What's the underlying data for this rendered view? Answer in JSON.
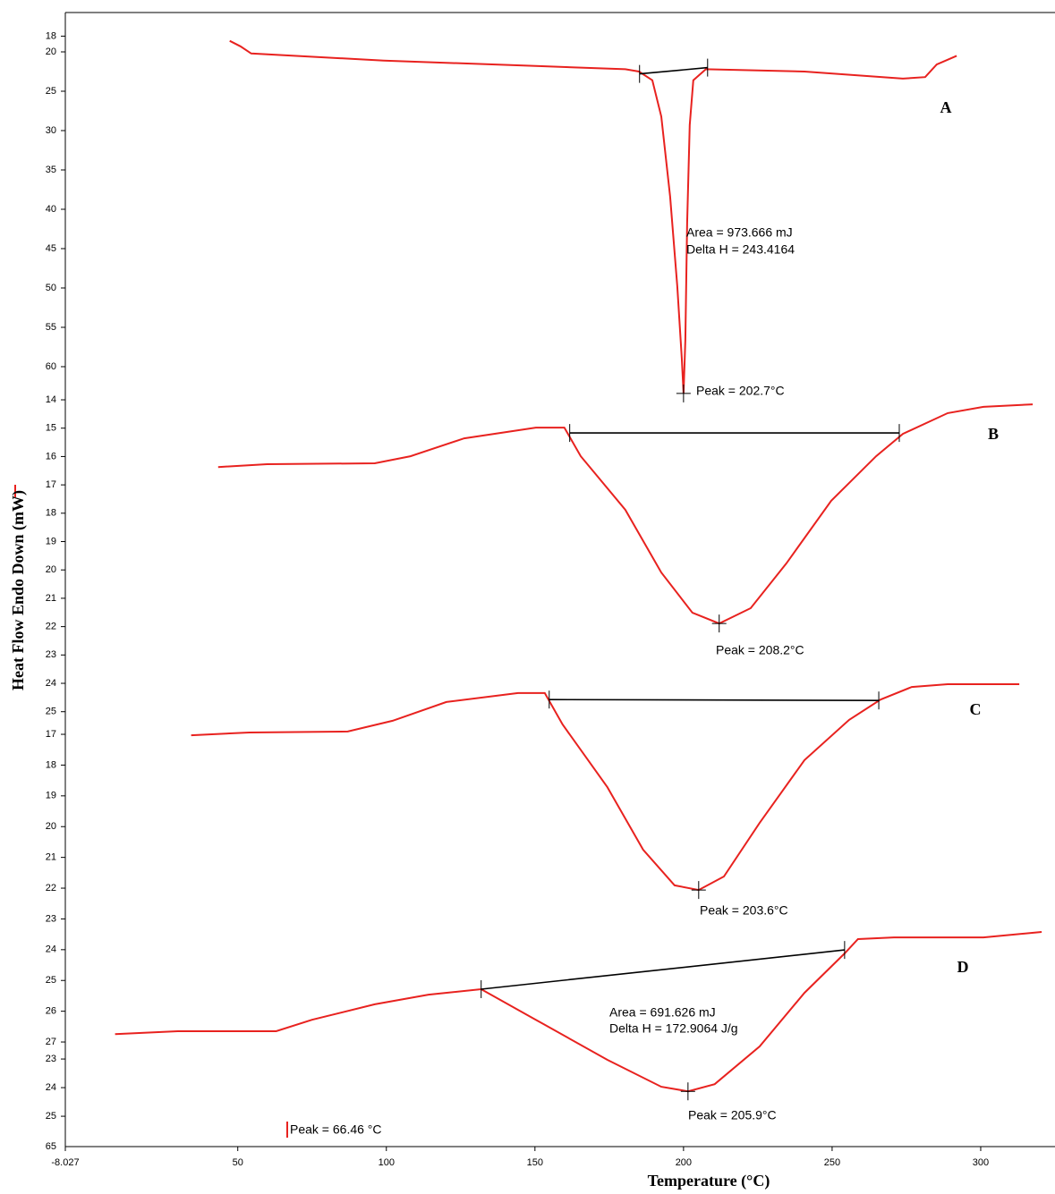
{
  "chart_data": [
    {
      "type": "line",
      "label": "A",
      "ylim": [
        15,
        159.1
      ],
      "y_inverted": true,
      "yticks": [
        18,
        20,
        25,
        30,
        35,
        40,
        45,
        50,
        55,
        60
      ],
      "series": [
        {
          "color": "#e8221f",
          "x": [
            47.3,
            50.9,
            54.5,
            99.1,
            150.3,
            180.4,
            185,
            189.5,
            192.5,
            195.5,
            197.9,
            199.4,
            200,
            200.6,
            201.2,
            202.1,
            203.3,
            207.5,
            240.7,
            273.8,
            281.3,
            285.2,
            291.9
          ],
          "values": [
            18.6,
            19.3,
            20.2,
            21.1,
            21.8,
            22.2,
            22.5,
            23.6,
            28.2,
            38.4,
            49.8,
            58.9,
            63.4,
            56.6,
            41.8,
            29.3,
            23.6,
            22.2,
            22.5,
            23.4,
            23.2,
            21.6,
            20.5
          ]
        },
        {
          "color": "#000000",
          "x": [
            185.2,
            208.1
          ],
          "values": [
            22.8,
            22.0
          ]
        }
      ],
      "peak": {
        "x": 200,
        "y": 63.4
      },
      "annotations": [
        "Area = 973.666 mJ",
        "Delta H = 243.4164",
        "Peak = 202.7°C"
      ]
    },
    {
      "type": "line",
      "label": "B",
      "ylim": [
        0.34,
        40.34
      ],
      "y_inverted": true,
      "yticks": [
        14,
        15,
        16,
        17,
        18,
        19,
        20,
        21,
        22,
        23,
        24,
        25
      ],
      "series": [
        {
          "color": "#e8221f",
          "x": [
            43.4,
            59.9,
            96.1,
            108.1,
            126.2,
            150.3,
            159.9,
            165.4,
            180.4,
            192.5,
            203,
            212,
            222.6,
            234.6,
            249.7,
            264.8,
            273.8,
            288.9,
            300.9,
            317.5
          ],
          "values": [
            16.37,
            16.27,
            16.24,
            15.99,
            15.36,
            14.98,
            14.98,
            15.99,
            17.88,
            20.09,
            21.51,
            21.89,
            21.35,
            19.77,
            17.56,
            15.99,
            15.2,
            14.47,
            14.25,
            14.16
          ]
        },
        {
          "color": "#000000",
          "x": [
            161.7,
            272.6
          ],
          "values": [
            15.17,
            15.17
          ]
        }
      ],
      "peak": {
        "x": 212,
        "y": 21.89
      },
      "annotations": [
        "Peak = 208.2°C"
      ]
    },
    {
      "type": "line",
      "label": "C",
      "ylim": [
        -6.46,
        30.4
      ],
      "y_inverted": true,
      "yticks": [
        17,
        18,
        19,
        20,
        21,
        22,
        23,
        24,
        25,
        26,
        27
      ],
      "series": [
        {
          "color": "#e8221f",
          "x": [
            34.3,
            53.9,
            87,
            102.1,
            120.2,
            144.3,
            153.3,
            159.3,
            174.4,
            186.4,
            197,
            205.1,
            213.6,
            225.6,
            240.7,
            255.7,
            266.3,
            276.8,
            288.9,
            313
          ],
          "values": [
            17.03,
            16.94,
            16.91,
            16.56,
            15.95,
            15.66,
            15.66,
            16.68,
            18.72,
            20.75,
            21.91,
            22.06,
            21.62,
            19.88,
            17.84,
            16.53,
            15.87,
            15.46,
            15.37,
            15.37
          ]
        },
        {
          "color": "#000000",
          "x": [
            154.8,
            265.7
          ],
          "values": [
            15.87,
            15.9
          ]
        }
      ],
      "peak": {
        "x": 205.1,
        "y": 22.06
      },
      "annotations": [
        "Peak = 203.6°C"
      ]
    },
    {
      "type": "line",
      "label": "D",
      "ylim": [
        -13.56,
        26.06
      ],
      "y_inverted": true,
      "yticks": [
        23,
        24,
        25
      ],
      "y_end_label": "65",
      "xlim": [
        -8.027,
        325
      ],
      "xticks": [
        -8.027,
        50,
        100,
        150,
        200,
        250,
        300
      ],
      "xlabel": "Temperature (°C)",
      "ylabel": "Heat Flow Endo Down (mW)",
      "series": [
        {
          "color": "#e8221f",
          "x": [
            8.7,
            29.8,
            62.9,
            75,
            96.1,
            114.2,
            131.9,
            150.3,
            174.4,
            192.5,
            201.5,
            210.5,
            225.6,
            240.7,
            254.2,
            258.7,
            270.8,
            300.9,
            320.5
          ],
          "values": [
            22.13,
            22.03,
            22.03,
            21.63,
            21.09,
            20.75,
            20.56,
            21.63,
            23.03,
            23.97,
            24.13,
            23.88,
            22.56,
            20.69,
            19.31,
            18.81,
            18.75,
            18.75,
            18.56
          ]
        },
        {
          "color": "#000000",
          "x": [
            131.9,
            254.2
          ],
          "values": [
            20.56,
            19.19
          ]
        }
      ],
      "peak": {
        "x": 201.5,
        "y": 24.13
      },
      "annotations": [
        "Area = 691.626 mJ",
        "Delta H = 172.9064 J/g",
        "Peak = 205.9°C",
        "Peak = 66.46 °C"
      ]
    }
  ]
}
